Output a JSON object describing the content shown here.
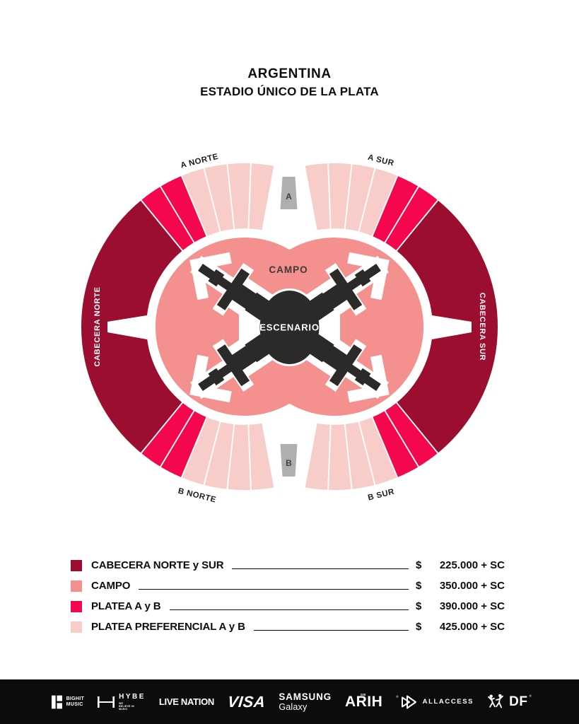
{
  "title": {
    "country": "ARGENTINA",
    "venue": "ESTADIO ÚNICO DE LA PLATA"
  },
  "colors": {
    "cabecera": "#9C0E2F",
    "campo": "#F4908D",
    "platea": "#F5074D",
    "preferencial": "#F8CCC9",
    "tunnel": "#AFAFAF",
    "stage": "#2B2A29",
    "footer_bar": "#0C0C0C",
    "text_dark": "#0D0D0D"
  },
  "map": {
    "section_labels": {
      "a_norte": "A NORTE",
      "a_sur": "A SUR",
      "b_norte": "B NORTE",
      "b_sur": "B SUR",
      "cabecera_norte": "CABECERA NORTE",
      "cabecera_sur": "CABECERA SUR",
      "campo": "CAMPO",
      "escenario": "ESCENARIO",
      "tunnel_a": "A",
      "tunnel_b": "B"
    },
    "fan_structure": {
      "preferencial_wedges_per_quadrant": 4,
      "platea_wedges_per_quadrant": 2
    }
  },
  "legend": {
    "rows": [
      {
        "label": "CABECERA NORTE y SUR",
        "currency": "$",
        "price": "225.000 + SC",
        "color": "#9C0E2F"
      },
      {
        "label": "CAMPO",
        "currency": "$",
        "price": "350.000 + SC",
        "color": "#F4908D"
      },
      {
        "label": "PLATEA A y B",
        "currency": "$",
        "price": "390.000 + SC",
        "color": "#F5074D"
      },
      {
        "label": "PLATEA PREFERENCIAL A y B",
        "currency": "$",
        "price": "425.000 + SC",
        "color": "#F8CCC9"
      }
    ]
  },
  "footer": {
    "sponsors": {
      "bighit": {
        "line1": "BIGHIT",
        "line2": "MUSIC"
      },
      "hybe": {
        "name": "HYBE",
        "tagline": [
          "WE",
          "BELIEVE IN",
          "MUSIC"
        ]
      },
      "livenation": {
        "name": "LIVE NATION"
      },
      "visa": {
        "name": "VISA"
      },
      "samsung": {
        "line1": "SAMSUNG",
        "line2": "Galaxy"
      },
      "arih": {
        "name": "ARIH",
        "mark": "GB"
      },
      "allaccess": {
        "name": "ALLACCESS",
        "registered": "®"
      },
      "df": {
        "name": "DF",
        "registered": "®"
      }
    }
  }
}
